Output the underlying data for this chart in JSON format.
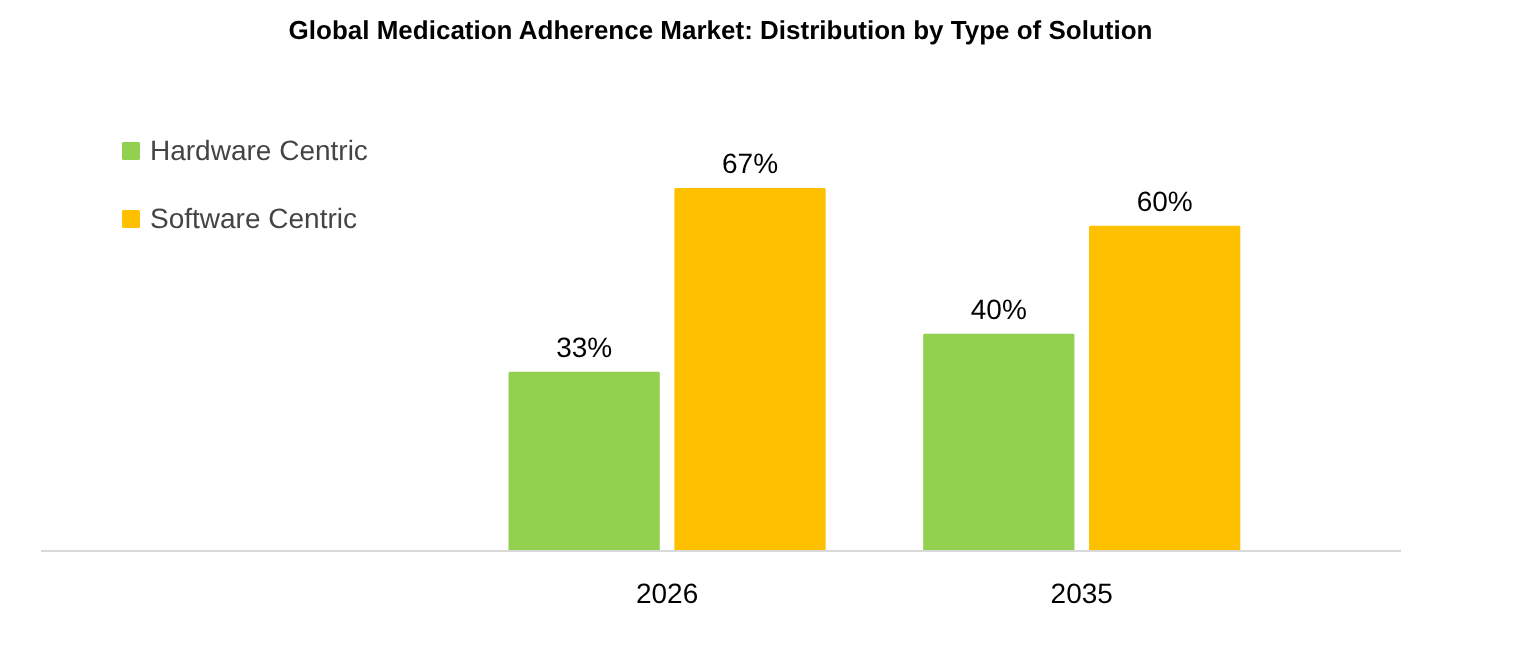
{
  "chart_data": {
    "type": "bar",
    "title": "Global Medication Adherence Market: Distribution by Type of Solution",
    "categories": [
      "2026",
      "2035"
    ],
    "series": [
      {
        "name": "Hardware Centric",
        "color": "#92d050",
        "values": [
          33,
          40
        ],
        "value_labels": [
          "33%",
          "40%"
        ]
      },
      {
        "name": "Software Centric",
        "color": "#ffc000",
        "values": [
          67,
          60
        ],
        "value_labels": [
          "67%",
          "60%"
        ]
      }
    ],
    "legend": "left",
    "grid": false
  }
}
